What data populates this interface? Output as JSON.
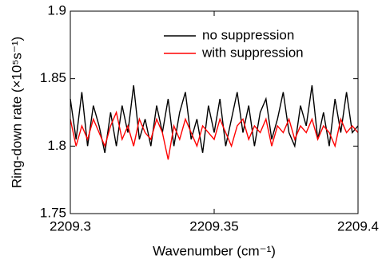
{
  "chart_data": {
    "type": "line",
    "xlabel": "Wavenumber (cm⁻¹)",
    "ylabel": "Ring-down rate (×10⁵s⁻¹)",
    "x": [
      2209.3,
      2209.302,
      2209.304,
      2209.306,
      2209.308,
      2209.31,
      2209.312,
      2209.314,
      2209.316,
      2209.318,
      2209.32,
      2209.322,
      2209.324,
      2209.326,
      2209.328,
      2209.33,
      2209.332,
      2209.334,
      2209.336,
      2209.338,
      2209.34,
      2209.342,
      2209.344,
      2209.346,
      2209.348,
      2209.35,
      2209.352,
      2209.354,
      2209.356,
      2209.358,
      2209.36,
      2209.362,
      2209.364,
      2209.366,
      2209.368,
      2209.37,
      2209.372,
      2209.374,
      2209.376,
      2209.378,
      2209.38,
      2209.382,
      2209.384,
      2209.386,
      2209.388,
      2209.39,
      2209.392,
      2209.394,
      2209.396,
      2209.398,
      2209.4
    ],
    "series": [
      {
        "name": "no suppression",
        "color": "#000000",
        "values": [
          1.835,
          1.805,
          1.84,
          1.8,
          1.83,
          1.815,
          1.795,
          1.825,
          1.8,
          1.83,
          1.81,
          1.845,
          1.805,
          1.82,
          1.8,
          1.83,
          1.81,
          1.835,
          1.8,
          1.825,
          1.84,
          1.805,
          1.82,
          1.795,
          1.83,
          1.81,
          1.835,
          1.8,
          1.82,
          1.84,
          1.81,
          1.83,
          1.8,
          1.825,
          1.835,
          1.805,
          1.82,
          1.84,
          1.81,
          1.8,
          1.83,
          1.815,
          1.845,
          1.805,
          1.825,
          1.8,
          1.835,
          1.81,
          1.84,
          1.81,
          1.815
        ]
      },
      {
        "name": "with suppression",
        "color": "#ff0000",
        "values": [
          1.82,
          1.8,
          1.815,
          1.805,
          1.82,
          1.81,
          1.8,
          1.815,
          1.825,
          1.805,
          1.815,
          1.8,
          1.82,
          1.81,
          1.805,
          1.82,
          1.81,
          1.79,
          1.815,
          1.805,
          1.82,
          1.81,
          1.8,
          1.815,
          1.81,
          1.805,
          1.82,
          1.81,
          1.8,
          1.815,
          1.82,
          1.805,
          1.815,
          1.81,
          1.82,
          1.8,
          1.815,
          1.81,
          1.82,
          1.805,
          1.815,
          1.81,
          1.82,
          1.805,
          1.815,
          1.81,
          1.8,
          1.82,
          1.81,
          1.815,
          1.81
        ]
      }
    ],
    "xlim": [
      2209.3,
      2209.4
    ],
    "xticks": [
      2209.3,
      2209.35,
      2209.4
    ],
    "ylim": [
      1.75,
      1.9
    ],
    "yticks": [
      1.75,
      1.8,
      1.85,
      1.9
    ],
    "legend": "upper right"
  }
}
